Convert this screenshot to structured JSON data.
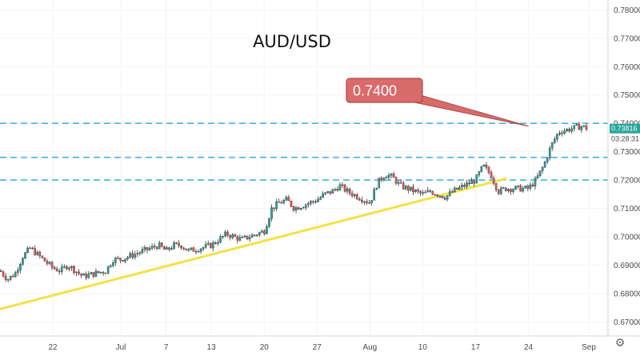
{
  "chart_data": {
    "type": "candlestick",
    "title": "AUD/USD",
    "ylim": [
      0.665,
      0.7835
    ],
    "y_ticks": [
      "0.67000",
      "0.68000",
      "0.69000",
      "0.70000",
      "0.71000",
      "0.72000",
      "0.73000",
      "0.74000",
      "0.75000",
      "0.76000",
      "0.77000",
      "0.78000"
    ],
    "x_ticks": [
      "22",
      "Jul",
      "7",
      "13",
      "20",
      "27",
      "Aug",
      "10",
      "17",
      "24",
      "Sep"
    ],
    "horizontal_levels": [
      0.74,
      0.728,
      0.72
    ],
    "trendlines": [
      {
        "from": [
          "Jun 15",
          0.6745
        ],
        "to": [
          "Aug 21",
          0.7205
        ]
      }
    ],
    "callout": {
      "text": "0.7400",
      "points_to": [
        "Aug 24",
        0.739
      ]
    },
    "last_price": "0.73816",
    "countdown": "03:28:31",
    "colors": {
      "up": "#26a69a",
      "down": "#ef5350",
      "level_line": "#45b3d8",
      "trendline": "#f5e146",
      "callout_fill": "#d96b6b",
      "badge": "#26a69a"
    },
    "close_path": [
      [
        "Jun 15",
        0.688
      ],
      [
        "Jun 16",
        0.685
      ],
      [
        "Jun 17",
        0.687
      ],
      [
        "Jun 18",
        0.693
      ],
      [
        "Jun 19",
        0.696
      ],
      [
        "Jun 22",
        0.689
      ],
      [
        "Jun 23",
        0.688
      ],
      [
        "Jun 24",
        0.69
      ],
      [
        "Jun 25",
        0.688
      ],
      [
        "Jun 26",
        0.686
      ],
      [
        "Jun 29",
        0.688
      ],
      [
        "Jun 30",
        0.692
      ],
      [
        "Jul 1",
        0.692
      ],
      [
        "Jul 2",
        0.693
      ],
      [
        "Jul 3",
        0.694
      ],
      [
        "Jul 6",
        0.697
      ],
      [
        "Jul 7",
        0.695
      ],
      [
        "Jul 8",
        0.697
      ],
      [
        "Jul 9",
        0.697
      ],
      [
        "Jul 10",
        0.695
      ],
      [
        "Jul 13",
        0.697
      ],
      [
        "Jul 14",
        0.699
      ],
      [
        "Jul 15",
        0.701
      ],
      [
        "Jul 16",
        0.7
      ],
      [
        "Jul 17",
        0.699
      ],
      [
        "Jul 20",
        0.702
      ],
      [
        "Jul 21",
        0.71
      ],
      [
        "Jul 22",
        0.712
      ],
      [
        "Jul 23",
        0.713
      ],
      [
        "Jul 24",
        0.71
      ],
      [
        "Jul 27",
        0.713
      ],
      [
        "Jul 28",
        0.715
      ],
      [
        "Jul 29",
        0.716
      ],
      [
        "Jul 30",
        0.718
      ],
      [
        "Jul 31",
        0.716
      ],
      [
        "Aug 3",
        0.712
      ],
      [
        "Aug 4",
        0.719
      ],
      [
        "Aug 5",
        0.722
      ],
      [
        "Aug 6",
        0.721
      ],
      [
        "Aug 7",
        0.718
      ],
      [
        "Aug 10",
        0.715
      ],
      [
        "Aug 11",
        0.716
      ],
      [
        "Aug 12",
        0.715
      ],
      [
        "Aug 13",
        0.714
      ],
      [
        "Aug 14",
        0.716
      ],
      [
        "Aug 17",
        0.72
      ],
      [
        "Aug 18",
        0.725
      ],
      [
        "Aug 19",
        0.722
      ],
      [
        "Aug 20",
        0.716
      ],
      [
        "Aug 21",
        0.717
      ],
      [
        "Aug 24",
        0.717
      ],
      [
        "Aug 25",
        0.72
      ],
      [
        "Aug 26",
        0.725
      ],
      [
        "Aug 27",
        0.732
      ],
      [
        "Aug 28",
        0.737
      ],
      [
        "Aug 31",
        0.739
      ],
      [
        "Sep 1",
        0.738
      ]
    ]
  }
}
